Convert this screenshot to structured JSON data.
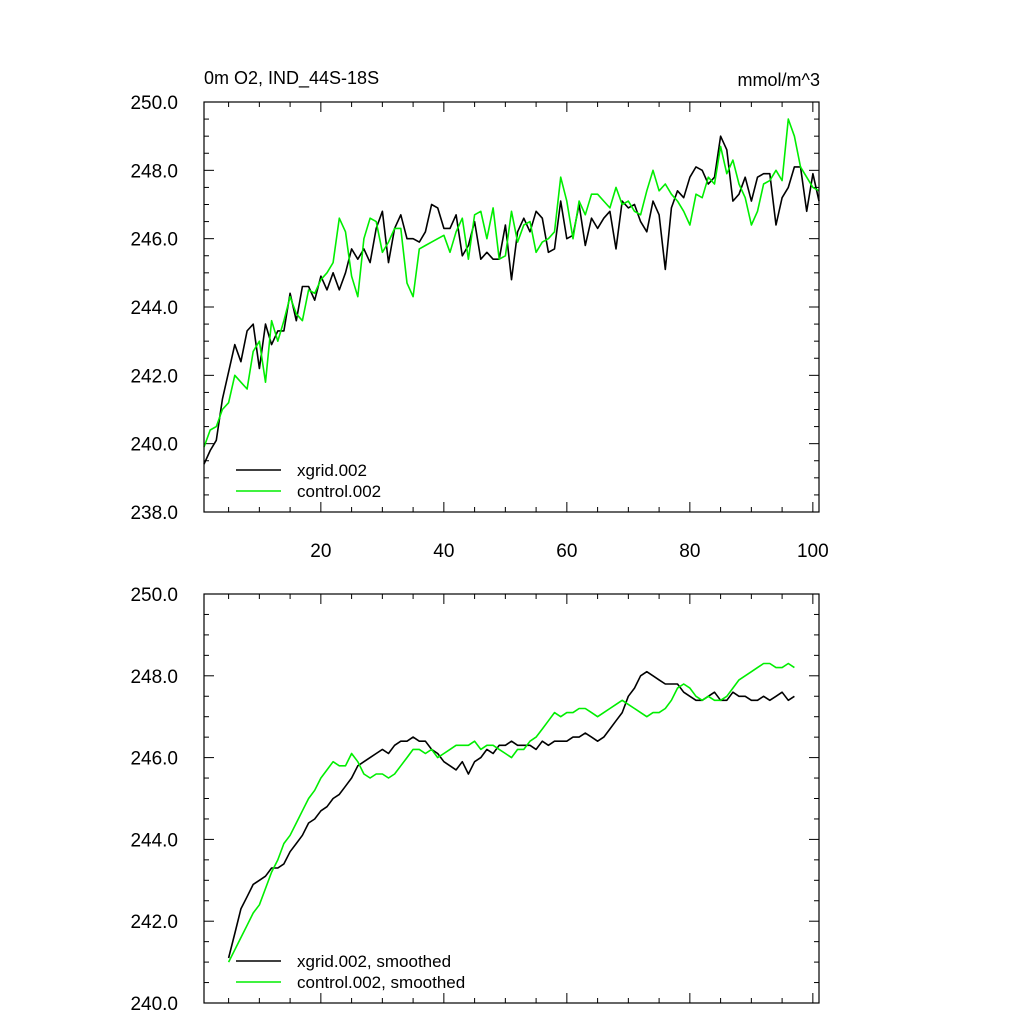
{
  "chart_data": [
    {
      "type": "line",
      "title": "0m O2, IND_44S-18S",
      "units": "mmol/m^3",
      "xlim": [
        1,
        101
      ],
      "ylim": [
        238,
        250
      ],
      "xticks": [
        20,
        40,
        60,
        80,
        100
      ],
      "yticks": [
        238,
        240,
        242,
        244,
        246,
        248,
        250
      ],
      "ytick_labels": [
        "238.0",
        "240.0",
        "242.0",
        "244.0",
        "246.0",
        "248.0",
        "250.0"
      ],
      "xtick_labels": [
        "20",
        "40",
        "60",
        "80",
        "100"
      ],
      "grid": false,
      "legend_position": "bottom-left",
      "series": [
        {
          "name": "xgrid.002",
          "color": "#000000",
          "x": [
            1,
            2,
            3,
            4,
            5,
            6,
            7,
            8,
            9,
            10,
            11,
            12,
            13,
            14,
            15,
            16,
            17,
            18,
            19,
            20,
            21,
            22,
            23,
            24,
            25,
            26,
            27,
            28,
            29,
            30,
            31,
            32,
            33,
            34,
            35,
            36,
            37,
            38,
            39,
            40,
            41,
            42,
            43,
            44,
            45,
            46,
            47,
            48,
            49,
            50,
            51,
            52,
            53,
            54,
            55,
            56,
            57,
            58,
            59,
            60,
            61,
            62,
            63,
            64,
            65,
            66,
            67,
            68,
            69,
            70,
            71,
            72,
            73,
            74,
            75,
            76,
            77,
            78,
            79,
            80,
            81,
            82,
            83,
            84,
            85,
            86,
            87,
            88,
            89,
            90,
            91,
            92,
            93,
            94,
            95,
            96,
            97,
            98,
            99,
            100,
            101
          ],
          "values": [
            239.4,
            239.8,
            240.1,
            241.3,
            242.1,
            242.9,
            242.4,
            243.3,
            243.5,
            242.2,
            243.5,
            242.9,
            243.3,
            243.3,
            244.4,
            243.6,
            244.6,
            244.6,
            244.2,
            244.9,
            244.5,
            245.0,
            244.5,
            245.0,
            245.7,
            245.4,
            245.7,
            245.3,
            246.3,
            246.8,
            245.3,
            246.3,
            246.7,
            246.0,
            246.0,
            245.9,
            246.2,
            247.0,
            246.9,
            246.3,
            246.3,
            246.7,
            245.5,
            245.8,
            246.5,
            245.4,
            245.6,
            245.4,
            245.4,
            246.4,
            244.8,
            246.2,
            246.6,
            246.2,
            246.8,
            246.6,
            245.6,
            245.7,
            247.1,
            246.0,
            246.1,
            247.0,
            245.8,
            246.6,
            246.3,
            246.6,
            246.8,
            245.7,
            247.1,
            246.9,
            247.0,
            246.5,
            246.2,
            247.1,
            246.7,
            245.1,
            246.9,
            247.4,
            247.2,
            247.8,
            248.1,
            248.0,
            247.6,
            247.8,
            249.0,
            248.6,
            247.1,
            247.3,
            247.8,
            247.1,
            247.8,
            247.9,
            247.9,
            246.4,
            247.2,
            247.5,
            248.1,
            248.1,
            246.8,
            247.9,
            247.1
          ]
        },
        {
          "name": "control.002",
          "color": "#00ee00",
          "x": [
            1,
            2,
            3,
            4,
            5,
            6,
            7,
            8,
            9,
            10,
            11,
            12,
            13,
            14,
            15,
            16,
            17,
            18,
            19,
            20,
            21,
            22,
            23,
            24,
            25,
            26,
            27,
            28,
            29,
            30,
            31,
            32,
            33,
            34,
            35,
            36,
            37,
            38,
            39,
            40,
            41,
            42,
            43,
            44,
            45,
            46,
            47,
            48,
            49,
            50,
            51,
            52,
            53,
            54,
            55,
            56,
            57,
            58,
            59,
            60,
            61,
            62,
            63,
            64,
            65,
            66,
            67,
            68,
            69,
            70,
            71,
            72,
            73,
            74,
            75,
            76,
            77,
            78,
            79,
            80,
            81,
            82,
            83,
            84,
            85,
            86,
            87,
            88,
            89,
            90,
            91,
            92,
            93,
            94,
            95,
            96,
            97,
            98,
            99,
            100,
            101
          ],
          "values": [
            239.9,
            240.4,
            240.5,
            241.0,
            241.2,
            242.0,
            241.8,
            241.6,
            242.7,
            243.0,
            241.8,
            243.6,
            243.0,
            243.6,
            244.3,
            243.8,
            243.6,
            244.5,
            244.4,
            244.8,
            245.0,
            245.3,
            246.6,
            246.2,
            244.9,
            244.3,
            246.0,
            246.6,
            246.5,
            245.6,
            245.9,
            246.3,
            246.3,
            244.7,
            244.3,
            245.7,
            245.8,
            245.9,
            246.0,
            246.1,
            245.6,
            246.2,
            246.6,
            245.4,
            246.7,
            246.8,
            246.0,
            246.9,
            245.4,
            245.5,
            246.8,
            245.9,
            246.4,
            246.5,
            245.6,
            245.9,
            246.0,
            246.2,
            247.8,
            247.1,
            246.0,
            247.1,
            246.7,
            247.3,
            247.3,
            247.1,
            246.9,
            247.5,
            247.0,
            247.1,
            246.8,
            246.7,
            247.4,
            248.0,
            247.4,
            247.6,
            247.3,
            247.1,
            246.8,
            246.4,
            247.3,
            247.2,
            247.8,
            247.6,
            248.7,
            247.9,
            248.3,
            247.6,
            247.2,
            246.4,
            246.8,
            247.6,
            247.7,
            248.0,
            247.7,
            249.5,
            249.0,
            248.1,
            247.8,
            247.5,
            247.4
          ]
        }
      ]
    },
    {
      "type": "line",
      "xlim": [
        1,
        101
      ],
      "ylim": [
        240,
        250
      ],
      "xticks": [
        20,
        40,
        60,
        80,
        100
      ],
      "yticks": [
        240,
        242,
        244,
        246,
        248,
        250
      ],
      "ytick_labels": [
        "240.0",
        "242.0",
        "244.0",
        "246.0",
        "248.0",
        "250.0"
      ],
      "grid": false,
      "legend_position": "bottom-left",
      "series": [
        {
          "name": "xgrid.002, smoothed",
          "color": "#000000",
          "x": [
            5,
            6,
            7,
            8,
            9,
            10,
            11,
            12,
            13,
            14,
            15,
            16,
            17,
            18,
            19,
            20,
            21,
            22,
            23,
            24,
            25,
            26,
            27,
            28,
            29,
            30,
            31,
            32,
            33,
            34,
            35,
            36,
            37,
            38,
            39,
            40,
            41,
            42,
            43,
            44,
            45,
            46,
            47,
            48,
            49,
            50,
            51,
            52,
            53,
            54,
            55,
            56,
            57,
            58,
            59,
            60,
            61,
            62,
            63,
            64,
            65,
            66,
            67,
            68,
            69,
            70,
            71,
            72,
            73,
            74,
            75,
            76,
            77,
            78,
            79,
            80,
            81,
            82,
            83,
            84,
            85,
            86,
            87,
            88,
            89,
            90,
            91,
            92,
            93,
            94,
            95,
            96,
            97
          ],
          "values": [
            241.1,
            241.7,
            242.3,
            242.6,
            242.9,
            243.0,
            243.1,
            243.3,
            243.3,
            243.4,
            243.7,
            243.9,
            244.1,
            244.4,
            244.5,
            244.7,
            244.8,
            245.0,
            245.1,
            245.3,
            245.5,
            245.8,
            245.9,
            246.0,
            246.1,
            246.2,
            246.1,
            246.3,
            246.4,
            246.4,
            246.5,
            246.4,
            246.4,
            246.2,
            246.1,
            245.9,
            245.8,
            245.7,
            245.9,
            245.6,
            245.9,
            246.0,
            246.2,
            246.1,
            246.3,
            246.3,
            246.4,
            246.3,
            246.3,
            246.3,
            246.2,
            246.4,
            246.3,
            246.4,
            246.4,
            246.4,
            246.5,
            246.5,
            246.6,
            246.5,
            246.4,
            246.5,
            246.7,
            246.9,
            247.1,
            247.5,
            247.7,
            248.0,
            248.1,
            248.0,
            247.9,
            247.8,
            247.8,
            247.8,
            247.6,
            247.5,
            247.4,
            247.4,
            247.5,
            247.6,
            247.4,
            247.4,
            247.6,
            247.5,
            247.5,
            247.4,
            247.4,
            247.5,
            247.4,
            247.5,
            247.6,
            247.4,
            247.5
          ]
        },
        {
          "name": "control.002, smoothed",
          "color": "#00ee00",
          "x": [
            5,
            6,
            7,
            8,
            9,
            10,
            11,
            12,
            13,
            14,
            15,
            16,
            17,
            18,
            19,
            20,
            21,
            22,
            23,
            24,
            25,
            26,
            27,
            28,
            29,
            30,
            31,
            32,
            33,
            34,
            35,
            36,
            37,
            38,
            39,
            40,
            41,
            42,
            43,
            44,
            45,
            46,
            47,
            48,
            49,
            50,
            51,
            52,
            53,
            54,
            55,
            56,
            57,
            58,
            59,
            60,
            61,
            62,
            63,
            64,
            65,
            66,
            67,
            68,
            69,
            70,
            71,
            72,
            73,
            74,
            75,
            76,
            77,
            78,
            79,
            80,
            81,
            82,
            83,
            84,
            85,
            86,
            87,
            88,
            89,
            90,
            91,
            92,
            93,
            94,
            95,
            96,
            97
          ],
          "values": [
            241.0,
            241.3,
            241.6,
            241.9,
            242.2,
            242.4,
            242.8,
            243.2,
            243.5,
            243.9,
            244.1,
            244.4,
            244.7,
            245.0,
            245.2,
            245.5,
            245.7,
            245.9,
            245.8,
            245.8,
            246.1,
            245.9,
            245.6,
            245.5,
            245.6,
            245.6,
            245.5,
            245.6,
            245.8,
            246.0,
            246.2,
            246.2,
            246.1,
            246.2,
            246.0,
            246.1,
            246.2,
            246.3,
            246.3,
            246.3,
            246.4,
            246.2,
            246.3,
            246.3,
            246.2,
            246.1,
            246.0,
            246.2,
            246.2,
            246.4,
            246.5,
            246.7,
            246.9,
            247.1,
            247.0,
            247.1,
            247.1,
            247.2,
            247.2,
            247.1,
            247.0,
            247.1,
            247.2,
            247.3,
            247.4,
            247.3,
            247.2,
            247.1,
            247.0,
            247.1,
            247.1,
            247.2,
            247.4,
            247.7,
            247.8,
            247.7,
            247.5,
            247.4,
            247.5,
            247.4,
            247.4,
            247.5,
            247.7,
            247.9,
            248.0,
            248.1,
            248.2,
            248.3,
            248.3,
            248.2,
            248.2,
            248.3,
            248.2
          ]
        }
      ]
    }
  ]
}
